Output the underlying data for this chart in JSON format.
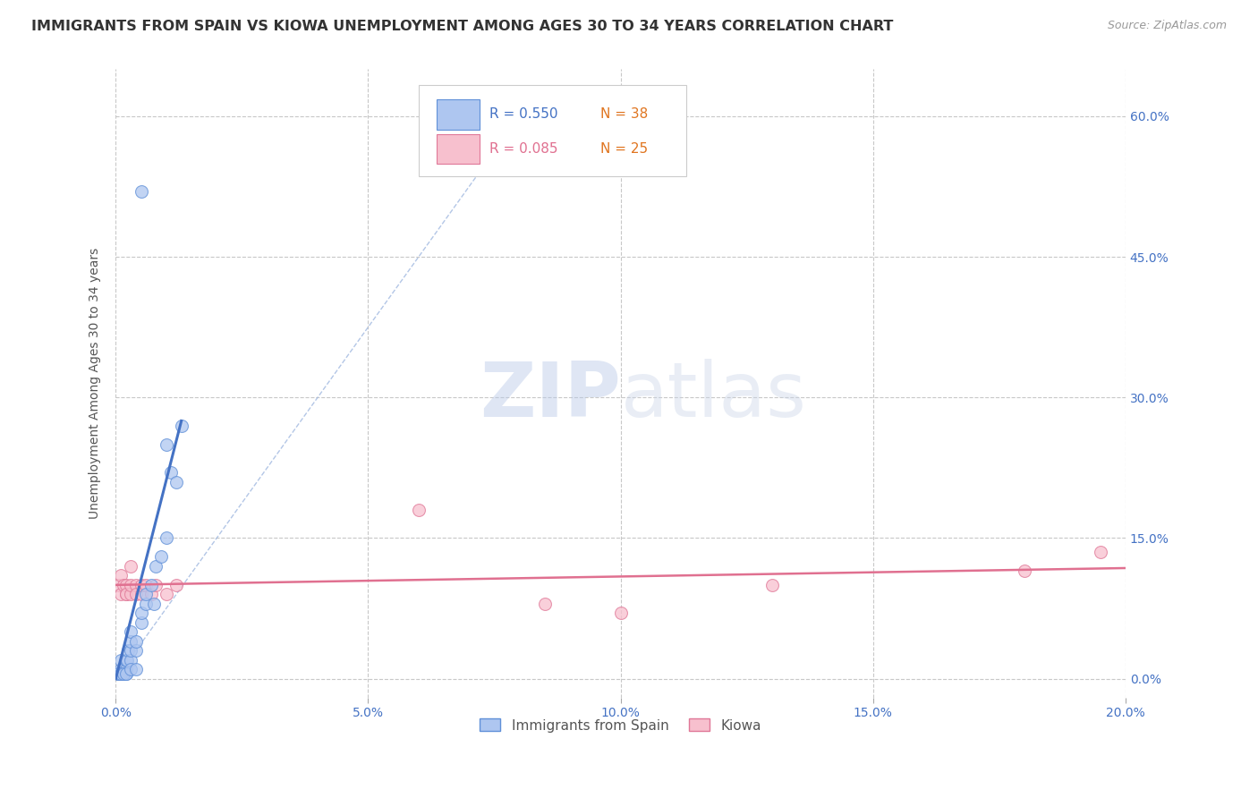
{
  "title": "IMMIGRANTS FROM SPAIN VS KIOWA UNEMPLOYMENT AMONG AGES 30 TO 34 YEARS CORRELATION CHART",
  "source": "Source: ZipAtlas.com",
  "ylabel": "Unemployment Among Ages 30 to 34 years",
  "xlim": [
    0.0,
    0.2
  ],
  "ylim": [
    -0.02,
    0.65
  ],
  "xticks": [
    0.0,
    0.05,
    0.1,
    0.15,
    0.2
  ],
  "xtick_labels": [
    "0.0%",
    "5.0%",
    "10.0%",
    "15.0%",
    "20.0%"
  ],
  "yticks_right": [
    0.0,
    0.15,
    0.3,
    0.45,
    0.6
  ],
  "ytick_labels_right": [
    "0.0%",
    "15.0%",
    "30.0%",
    "45.0%",
    "60.0%"
  ],
  "grid_color": "#c8c8c8",
  "background_color": "#ffffff",
  "watermark": "ZIPatlas",
  "watermark_color": "#cdd5ee",
  "series1_label": "Immigrants from Spain",
  "series1_R": "0.550",
  "series1_N": "38",
  "series1_color": "#aec6f0",
  "series1_edge_color": "#6090d8",
  "series2_label": "Kiowa",
  "series2_R": "0.085",
  "series2_N": "25",
  "series2_color": "#f7c0ce",
  "series2_edge_color": "#e07898",
  "legend_color1": "#4472c4",
  "legend_color2": "#e07090",
  "legend_N_color": "#e07520",
  "series1_x": [
    0.0005,
    0.0008,
    0.001,
    0.001,
    0.0012,
    0.0015,
    0.0018,
    0.002,
    0.002,
    0.002,
    0.0022,
    0.0025,
    0.003,
    0.003,
    0.003,
    0.003,
    0.004,
    0.004,
    0.005,
    0.005,
    0.006,
    0.006,
    0.007,
    0.0075,
    0.008,
    0.009,
    0.01,
    0.01,
    0.011,
    0.012,
    0.013,
    0.0005,
    0.001,
    0.0015,
    0.002,
    0.003,
    0.004,
    0.005
  ],
  "series1_y": [
    0.005,
    0.005,
    0.01,
    0.02,
    0.005,
    0.01,
    0.005,
    0.005,
    0.01,
    0.02,
    0.02,
    0.03,
    0.02,
    0.03,
    0.04,
    0.05,
    0.03,
    0.04,
    0.06,
    0.07,
    0.08,
    0.09,
    0.1,
    0.08,
    0.12,
    0.13,
    0.15,
    0.25,
    0.22,
    0.21,
    0.27,
    0.005,
    0.005,
    0.005,
    0.005,
    0.01,
    0.01,
    0.52
  ],
  "series2_x": [
    0.0005,
    0.001,
    0.001,
    0.0015,
    0.002,
    0.002,
    0.002,
    0.003,
    0.003,
    0.003,
    0.004,
    0.004,
    0.005,
    0.005,
    0.006,
    0.007,
    0.008,
    0.01,
    0.012,
    0.06,
    0.085,
    0.1,
    0.13,
    0.18,
    0.195
  ],
  "series2_y": [
    0.1,
    0.09,
    0.11,
    0.1,
    0.09,
    0.1,
    0.09,
    0.09,
    0.1,
    0.12,
    0.1,
    0.09,
    0.09,
    0.1,
    0.1,
    0.09,
    0.1,
    0.09,
    0.1,
    0.18,
    0.08,
    0.07,
    0.1,
    0.115,
    0.135
  ],
  "marker_size": 100,
  "title_fontsize": 11.5,
  "axis_label_fontsize": 10,
  "tick_fontsize": 10,
  "legend_fontsize": 11,
  "source_fontsize": 9
}
